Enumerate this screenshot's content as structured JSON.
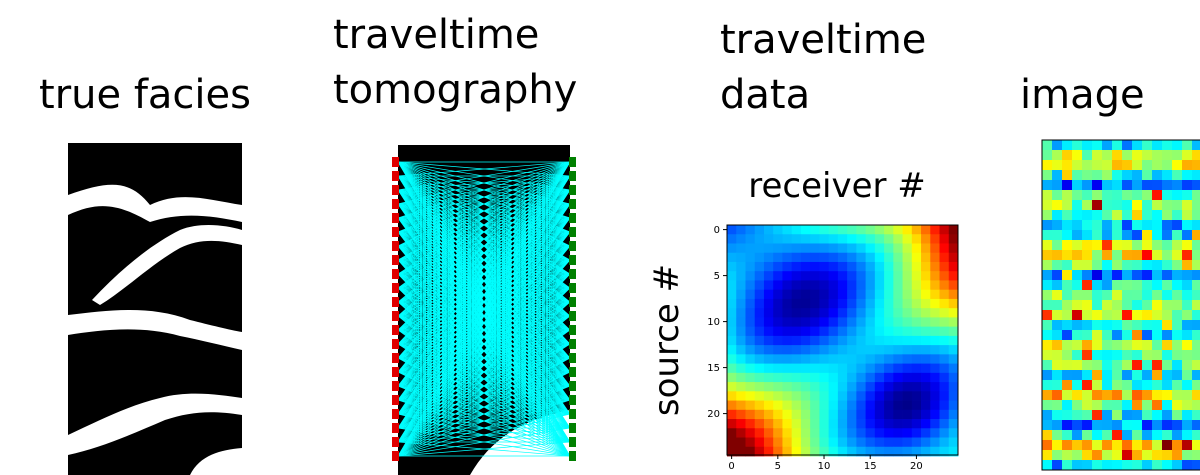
{
  "panels": [
    {
      "title": [
        "true facies"
      ]
    },
    {
      "title": [
        "traveltime",
        "tomography"
      ]
    },
    {
      "title": [
        "traveltime",
        "data"
      ]
    },
    {
      "title": [
        "image"
      ]
    }
  ],
  "heatmap": {
    "title": "receiver #",
    "ylabel": "source #",
    "xlim": [
      -0.5,
      24.5
    ],
    "ylim": [
      -0.5,
      24.5
    ],
    "xticks": [
      0,
      5,
      10,
      15,
      20
    ],
    "yticks": [
      0,
      5,
      10,
      15,
      20
    ]
  }
}
